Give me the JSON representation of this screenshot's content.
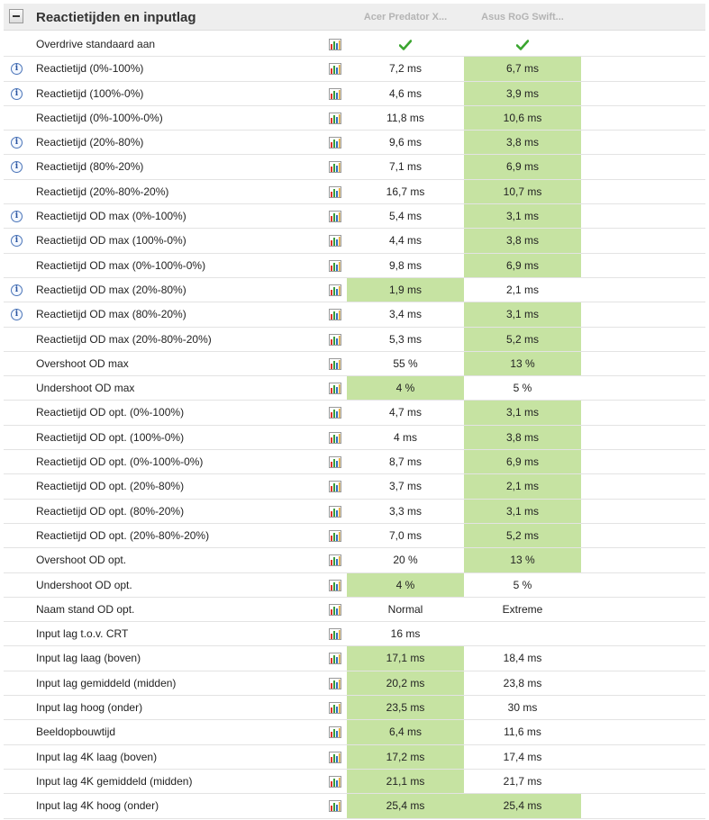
{
  "section": {
    "title": "Reactietijden en inputlag",
    "columns": [
      "Acer Predator X...",
      "Asus RoG Swift..."
    ]
  },
  "colors": {
    "best": "#c6e3a2",
    "header_bg": "#eeeeee",
    "check": "#3aa52f"
  },
  "rows": [
    {
      "label": "Overdrive standaard aan",
      "info": false,
      "v1": "",
      "v2": "",
      "check1": true,
      "check2": true,
      "best": ""
    },
    {
      "label": "Reactietijd (0%-100%)",
      "info": true,
      "v1": "7,2 ms",
      "v2": "6,7 ms",
      "best": "v2"
    },
    {
      "label": "Reactietijd (100%-0%)",
      "info": true,
      "v1": "4,6 ms",
      "v2": "3,9 ms",
      "best": "v2"
    },
    {
      "label": "Reactietijd (0%-100%-0%)",
      "info": false,
      "v1": "11,8 ms",
      "v2": "10,6 ms",
      "best": "v2"
    },
    {
      "label": "Reactietijd (20%-80%)",
      "info": true,
      "v1": "9,6 ms",
      "v2": "3,8 ms",
      "best": "v2"
    },
    {
      "label": "Reactietijd (80%-20%)",
      "info": true,
      "v1": "7,1 ms",
      "v2": "6,9 ms",
      "best": "v2"
    },
    {
      "label": "Reactietijd (20%-80%-20%)",
      "info": false,
      "v1": "16,7 ms",
      "v2": "10,7 ms",
      "best": "v2"
    },
    {
      "label": "Reactietijd OD max (0%-100%)",
      "info": true,
      "v1": "5,4 ms",
      "v2": "3,1 ms",
      "best": "v2"
    },
    {
      "label": "Reactietijd OD max (100%-0%)",
      "info": true,
      "v1": "4,4 ms",
      "v2": "3,8 ms",
      "best": "v2"
    },
    {
      "label": "Reactietijd OD max (0%-100%-0%)",
      "info": false,
      "v1": "9,8 ms",
      "v2": "6,9 ms",
      "best": "v2"
    },
    {
      "label": "Reactietijd OD max (20%-80%)",
      "info": true,
      "v1": "1,9 ms",
      "v2": "2,1 ms",
      "best": "v1"
    },
    {
      "label": "Reactietijd OD max (80%-20%)",
      "info": true,
      "v1": "3,4 ms",
      "v2": "3,1 ms",
      "best": "v2"
    },
    {
      "label": "Reactietijd OD max (20%-80%-20%)",
      "info": false,
      "v1": "5,3 ms",
      "v2": "5,2 ms",
      "best": "v2"
    },
    {
      "label": "Overshoot OD max",
      "info": false,
      "v1": "55 %",
      "v2": "13 %",
      "best": "v2"
    },
    {
      "label": "Undershoot OD max",
      "info": false,
      "v1": "4 %",
      "v2": "5 %",
      "best": "v1"
    },
    {
      "label": "Reactietijd OD opt. (0%-100%)",
      "info": false,
      "v1": "4,7 ms",
      "v2": "3,1 ms",
      "best": "v2"
    },
    {
      "label": "Reactietijd OD opt. (100%-0%)",
      "info": false,
      "v1": "4 ms",
      "v2": "3,8 ms",
      "best": "v2"
    },
    {
      "label": "Reactietijd OD opt. (0%-100%-0%)",
      "info": false,
      "v1": "8,7 ms",
      "v2": "6,9 ms",
      "best": "v2"
    },
    {
      "label": "Reactietijd OD opt. (20%-80%)",
      "info": false,
      "v1": "3,7 ms",
      "v2": "2,1 ms",
      "best": "v2"
    },
    {
      "label": "Reactietijd OD opt. (80%-20%)",
      "info": false,
      "v1": "3,3 ms",
      "v2": "3,1 ms",
      "best": "v2"
    },
    {
      "label": "Reactietijd OD opt. (20%-80%-20%)",
      "info": false,
      "v1": "7,0 ms",
      "v2": "5,2 ms",
      "best": "v2"
    },
    {
      "label": "Overshoot OD opt.",
      "info": false,
      "v1": "20 %",
      "v2": "13 %",
      "best": "v2"
    },
    {
      "label": "Undershoot OD opt.",
      "info": false,
      "v1": "4 %",
      "v2": "5 %",
      "best": "v1"
    },
    {
      "label": "Naam stand OD opt.",
      "info": false,
      "v1": "Normal",
      "v2": "Extreme",
      "best": ""
    },
    {
      "label": "Input lag t.o.v. CRT",
      "info": false,
      "v1": "16 ms",
      "v2": "",
      "best": ""
    },
    {
      "label": "Input lag laag (boven)",
      "info": false,
      "v1": "17,1 ms",
      "v2": "18,4 ms",
      "best": "v1"
    },
    {
      "label": "Input lag gemiddeld (midden)",
      "info": false,
      "v1": "20,2 ms",
      "v2": "23,8 ms",
      "best": "v1"
    },
    {
      "label": "Input lag hoog (onder)",
      "info": false,
      "v1": "23,5 ms",
      "v2": "30 ms",
      "best": "v1"
    },
    {
      "label": "Beeldopbouwtijd",
      "info": false,
      "v1": "6,4 ms",
      "v2": "11,6 ms",
      "best": "v1"
    },
    {
      "label": "Input lag 4K laag (boven)",
      "info": false,
      "v1": "17,2 ms",
      "v2": "17,4 ms",
      "best": "v1"
    },
    {
      "label": "Input lag 4K gemiddeld (midden)",
      "info": false,
      "v1": "21,1 ms",
      "v2": "21,7 ms",
      "best": "v1"
    },
    {
      "label": "Input lag 4K hoog (onder)",
      "info": false,
      "v1": "25,4 ms",
      "v2": "25,4 ms",
      "best": "both"
    }
  ]
}
